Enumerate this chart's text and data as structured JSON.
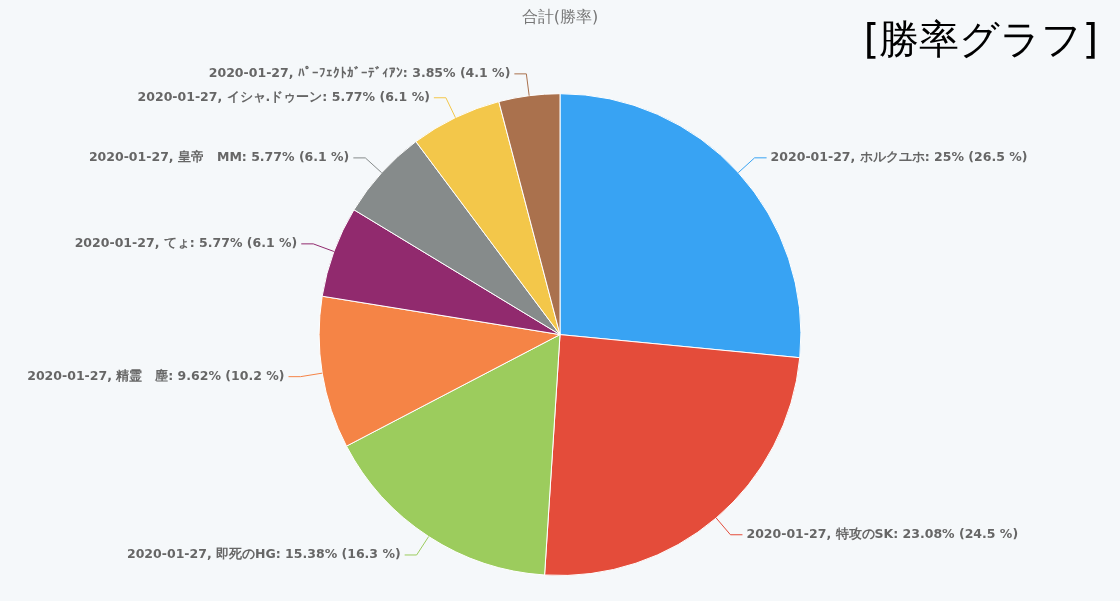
{
  "chart_data": {
    "type": "pie",
    "title": "合計(勝率)",
    "annotations": [
      "[勝率グラフ]"
    ],
    "categories": [
      "2020-01-27, ホルクユホ",
      "2020-01-27, 特攻のSK",
      "2020-01-27, 即死のHG",
      "2020-01-27, 精霊　塵",
      "2020-01-27, てょ",
      "2020-01-27, 皇帝　MM",
      "2020-01-27, イシャ.ドゥーン",
      "2020-01-27, ﾊﾟｰﾌｪｸﾄｶﾞｰﾃﾞｨｱﾝ"
    ],
    "values": [
      25,
      23.08,
      15.38,
      9.62,
      5.77,
      5.77,
      5.77,
      3.85
    ],
    "value_labels": [
      "25% (26.5 %)",
      "23.08% (24.5 %)",
      "15.38% (16.3 %)",
      "9.62% (10.2 %)",
      "5.77% (6.1 %)",
      "5.77% (6.1 %)",
      "5.77% (6.1 %)",
      "3.85% (4.1 %)"
    ],
    "colors": [
      "#38a3f3",
      "#e44c3a",
      "#9ccc5d",
      "#f58446",
      "#912a6e",
      "#868b8b",
      "#f3c74a",
      "#aa714d"
    ],
    "legend": false
  }
}
